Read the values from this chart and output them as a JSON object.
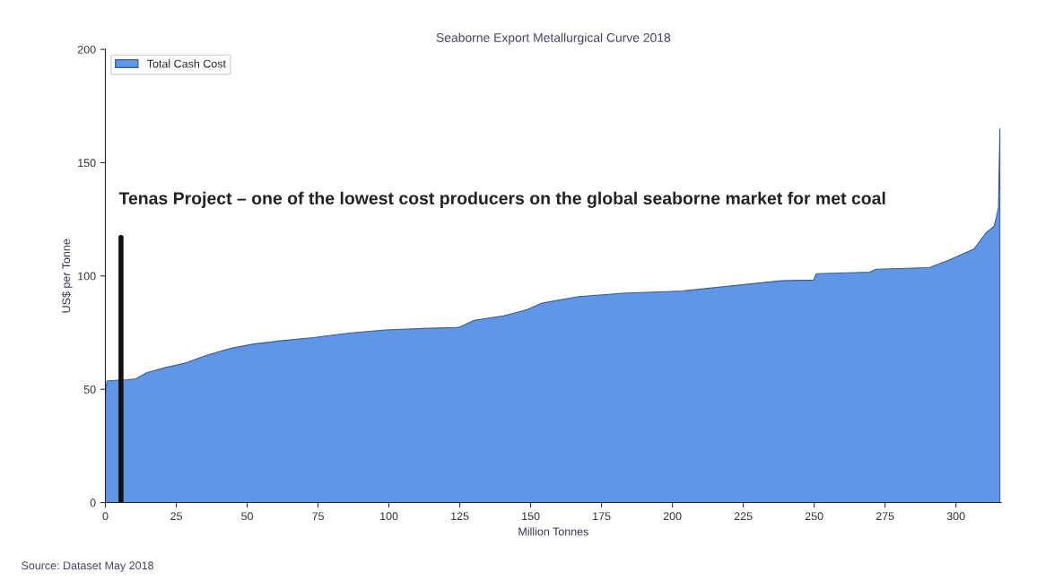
{
  "chart_data": {
    "type": "area",
    "title": "Seaborne Export Metallurgical Curve 2018",
    "xlabel": "Million Tonnes",
    "ylabel": "US$ per Tonne",
    "x": [
      0,
      0.1,
      0.6,
      7.7,
      10.7,
      14.7,
      21,
      28.3,
      35.7,
      44,
      52.4,
      61.8,
      73.4,
      86,
      98.6,
      114,
      124.7,
      130,
      140.4,
      148.8,
      154,
      157.5,
      167,
      182.7,
      203.7,
      224.6,
      238.3,
      249.8,
      250.8,
      269.7,
      271.8,
      290.6,
      298,
      306.4,
      310.6,
      313.5,
      315,
      315.5
    ],
    "series": [
      {
        "name": "Total Cash Cost",
        "color": "#5f97e6",
        "values": [
          44,
          49.8,
          53.7,
          54.2,
          54.6,
          57.4,
          59.5,
          61.6,
          65,
          68,
          70,
          71.4,
          72.8,
          74.8,
          76.2,
          76.9,
          77.3,
          80.4,
          82.4,
          85.2,
          88,
          88.8,
          90.9,
          92.4,
          93.4,
          96.1,
          97.9,
          98.2,
          101,
          101.7,
          103,
          103.7,
          107.2,
          112,
          119,
          122,
          130,
          165
        ]
      },
      {
        "type": "line",
        "color": "#111111",
        "x": [
          5.5,
          5.5
        ],
        "values": [
          0,
          117
        ]
      }
    ],
    "annotations": [
      "Tenas Project – one of the lowest cost producers on the global seaborne market for met coal",
      "Source: Dataset May 2018"
    ],
    "xlim": [
      0,
      316
    ],
    "xticks": [
      0,
      25,
      50,
      75,
      100,
      125,
      150,
      175,
      200,
      225,
      250,
      275,
      300
    ],
    "ylim": [
      0,
      200
    ],
    "yticks": [
      0,
      50,
      100,
      150,
      200
    ],
    "grid": false,
    "legend": "top left"
  }
}
